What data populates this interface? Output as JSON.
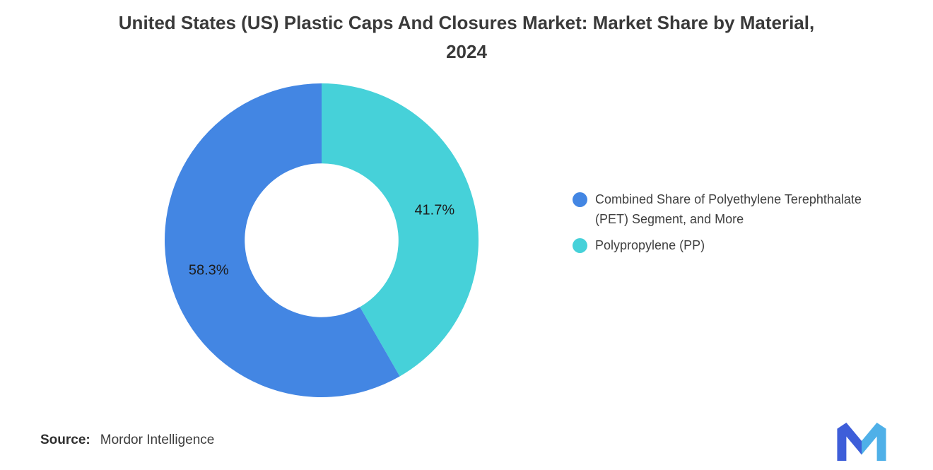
{
  "title": "United States (US) Plastic Caps And Closures Market: Market Share by Material, 2024",
  "source": {
    "label": "Source:",
    "value": "Mordor Intelligence"
  },
  "logo": {
    "name": "mordor-intelligence-logo",
    "color_left": "#3E5ED9",
    "color_right": "#4FB0E8"
  },
  "chart_data": {
    "type": "pie",
    "subtype": "donut",
    "title": "United States (US) Plastic Caps And Closures Market: Market Share by Material, 2024",
    "slices": [
      {
        "label": "Combined Share of Polyethylene Terephthalate (PET) Segment, and More",
        "value": 58.3,
        "data_label": "58.3%",
        "color": "#4386E3"
      },
      {
        "label": "Polypropylene (PP)",
        "value": 41.7,
        "data_label": "41.7%",
        "color": "#46D1D9"
      }
    ],
    "units": "percent",
    "total": 100,
    "legend_position": "right",
    "data_labels_shown": true,
    "donut_hole_ratio": 0.49,
    "start_angle_deg": 0,
    "direction": "counterclockwise",
    "grid": false
  }
}
